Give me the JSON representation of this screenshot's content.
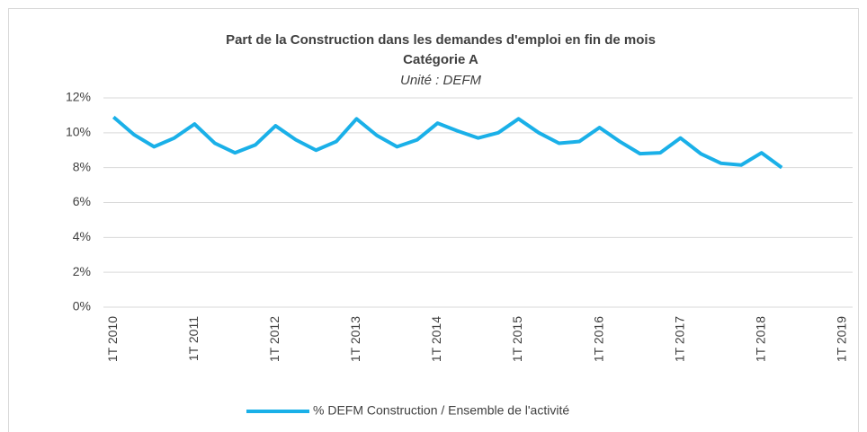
{
  "chart_data": {
    "type": "line",
    "title": "Part de la Construction dans les demandes d'emploi en fin de mois",
    "subtitle": "Catégorie A",
    "unit_label": "Unité : DEFM",
    "categories": [
      "1T 2010",
      null,
      null,
      null,
      "1T 2011",
      null,
      null,
      null,
      "1T 2012",
      null,
      null,
      null,
      "1T 2013",
      null,
      null,
      null,
      "1T 2014",
      null,
      null,
      null,
      "1T 2015",
      null,
      null,
      null,
      "1T 2016",
      null,
      null,
      null,
      "1T 2017",
      null,
      null,
      null,
      "1T 2018",
      null,
      null,
      null,
      "1T 2019"
    ],
    "series": [
      {
        "name": "% DEFM Construction / Ensemble de l'activité",
        "color": "#1ab0e8",
        "values": [
          10.9,
          9.9,
          9.2,
          9.7,
          10.5,
          9.4,
          8.85,
          9.3,
          10.4,
          9.6,
          9.0,
          9.5,
          10.8,
          9.85,
          9.2,
          9.6,
          10.55,
          10.1,
          9.7,
          10.0,
          10.8,
          10.0,
          9.4,
          9.5,
          10.3,
          9.5,
          8.8,
          8.85,
          9.7,
          8.8,
          8.25,
          8.15,
          8.85,
          8.0,
          null,
          null,
          null
        ]
      }
    ],
    "ylim": [
      0,
      12
    ],
    "yticks": [
      {
        "value": 0,
        "label": "0%"
      },
      {
        "value": 2,
        "label": "2%"
      },
      {
        "value": 4,
        "label": "4%"
      },
      {
        "value": 6,
        "label": "6%"
      },
      {
        "value": 8,
        "label": "8%"
      },
      {
        "value": 10,
        "label": "10%"
      },
      {
        "value": 12,
        "label": "12%"
      }
    ],
    "grid": true,
    "legend": "bottom"
  }
}
